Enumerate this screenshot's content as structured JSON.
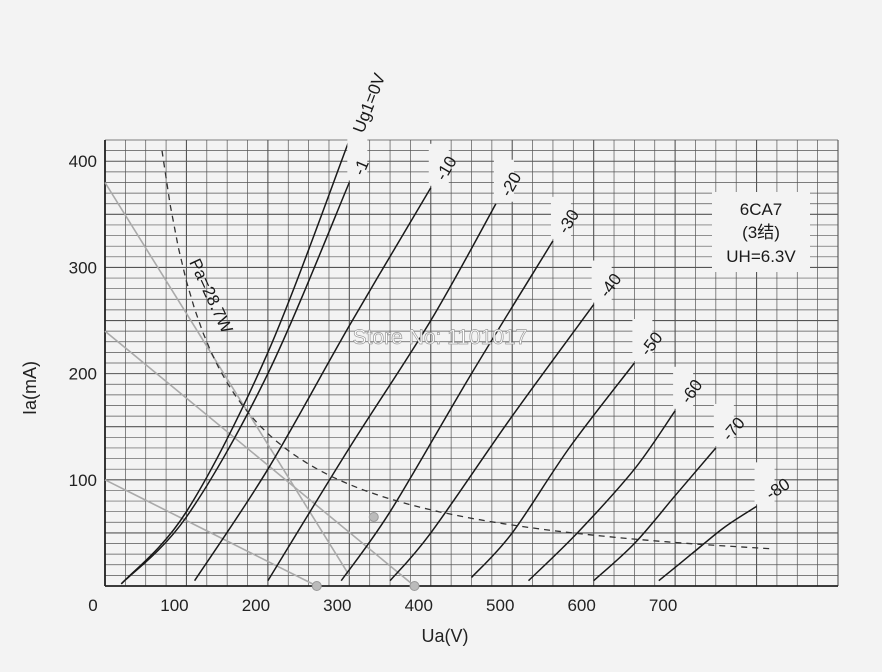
{
  "chart_data": {
    "type": "line",
    "title": "",
    "xlabel": "Ua(V)",
    "ylabel": "Ia(mA)",
    "xlim": [
      0,
      900
    ],
    "ylim": [
      0,
      420
    ],
    "x_ticks": [
      0,
      100,
      200,
      300,
      400,
      500,
      600,
      700
    ],
    "y_ticks": [
      100,
      200,
      300,
      400
    ],
    "grid": true,
    "series": [
      {
        "name": "Ug1=0V",
        "label": "Ug1=0V",
        "points": [
          [
            20,
            2
          ],
          [
            100,
            70
          ],
          [
            200,
            220
          ],
          [
            300,
            420
          ]
        ]
      },
      {
        "name": "-1",
        "label": "-1",
        "points": [
          [
            20,
            2
          ],
          [
            100,
            65
          ],
          [
            200,
            200
          ],
          [
            300,
            380
          ]
        ]
      },
      {
        "name": "-10",
        "label": "-10",
        "points": [
          [
            110,
            5
          ],
          [
            200,
            110
          ],
          [
            300,
            245
          ],
          [
            400,
            375
          ]
        ]
      },
      {
        "name": "-20",
        "label": "-20",
        "points": [
          [
            200,
            5
          ],
          [
            300,
            130
          ],
          [
            400,
            250
          ],
          [
            480,
            360
          ]
        ]
      },
      {
        "name": "-30",
        "label": "-30",
        "points": [
          [
            290,
            5
          ],
          [
            350,
            70
          ],
          [
            450,
            200
          ],
          [
            550,
            325
          ]
        ]
      },
      {
        "name": "-40",
        "label": "-40",
        "points": [
          [
            350,
            5
          ],
          [
            400,
            50
          ],
          [
            500,
            160
          ],
          [
            600,
            265
          ]
        ]
      },
      {
        "name": "-50",
        "label": "-50",
        "points": [
          [
            450,
            8
          ],
          [
            500,
            50
          ],
          [
            570,
            130
          ],
          [
            650,
            210
          ]
        ]
      },
      {
        "name": "-60",
        "label": "-60",
        "points": [
          [
            520,
            5
          ],
          [
            580,
            50
          ],
          [
            650,
            110
          ],
          [
            700,
            165
          ]
        ]
      },
      {
        "name": "-70",
        "label": "-70",
        "points": [
          [
            600,
            5
          ],
          [
            650,
            40
          ],
          [
            700,
            85
          ],
          [
            750,
            130
          ]
        ]
      },
      {
        "name": "-80",
        "label": "-80",
        "points": [
          [
            680,
            5
          ],
          [
            720,
            30
          ],
          [
            760,
            55
          ],
          [
            800,
            75
          ]
        ]
      }
    ],
    "power_curve": {
      "label": "Pa=28.7W",
      "watts": 28.7,
      "x_range": [
        70,
        820
      ]
    },
    "load_lines": [
      {
        "points": [
          [
            0,
            380
          ],
          [
            300,
            10
          ]
        ]
      },
      {
        "points": [
          [
            0,
            100
          ],
          [
            260,
            0
          ]
        ]
      },
      {
        "points": [
          [
            0,
            240
          ],
          [
            380,
            0
          ]
        ]
      }
    ],
    "markers": [
      [
        330,
        65
      ],
      [
        260,
        0
      ],
      [
        380,
        0
      ]
    ],
    "annotations": [
      "6CA7",
      "(3结)",
      "UH=6.3V"
    ]
  },
  "watermark": "Store No: 1101017"
}
